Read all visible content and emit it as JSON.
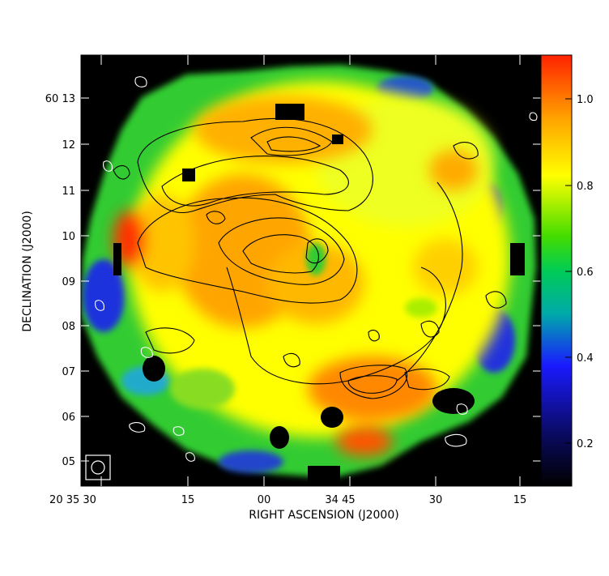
{
  "figure": {
    "xlabel": "RIGHT ASCENSION (J2000)",
    "ylabel": "DECLINATION (J2000)",
    "x_tick_labels": [
      "20 35 30",
      "15",
      "00",
      "34 45",
      "30",
      "15"
    ],
    "y_tick_labels": [
      "60 13",
      "12",
      "11",
      "10",
      "09",
      "08",
      "07",
      "06",
      "05"
    ],
    "colorbar": {
      "tick_labels": [
        "1.0",
        "0.8",
        "0.6",
        "0.4",
        "0.2"
      ],
      "tick_values": [
        1.0,
        0.8,
        0.6,
        0.4,
        0.2
      ],
      "range": [
        0.1,
        1.1
      ],
      "colormap": [
        "#000000",
        "#1a1aff",
        "#00cc66",
        "#33dd00",
        "#ffff00",
        "#ffa500",
        "#ff2a00"
      ]
    },
    "contour_color_inner": "#000000",
    "contour_color_outer": "#ffffff",
    "background_color": "#000000"
  }
}
